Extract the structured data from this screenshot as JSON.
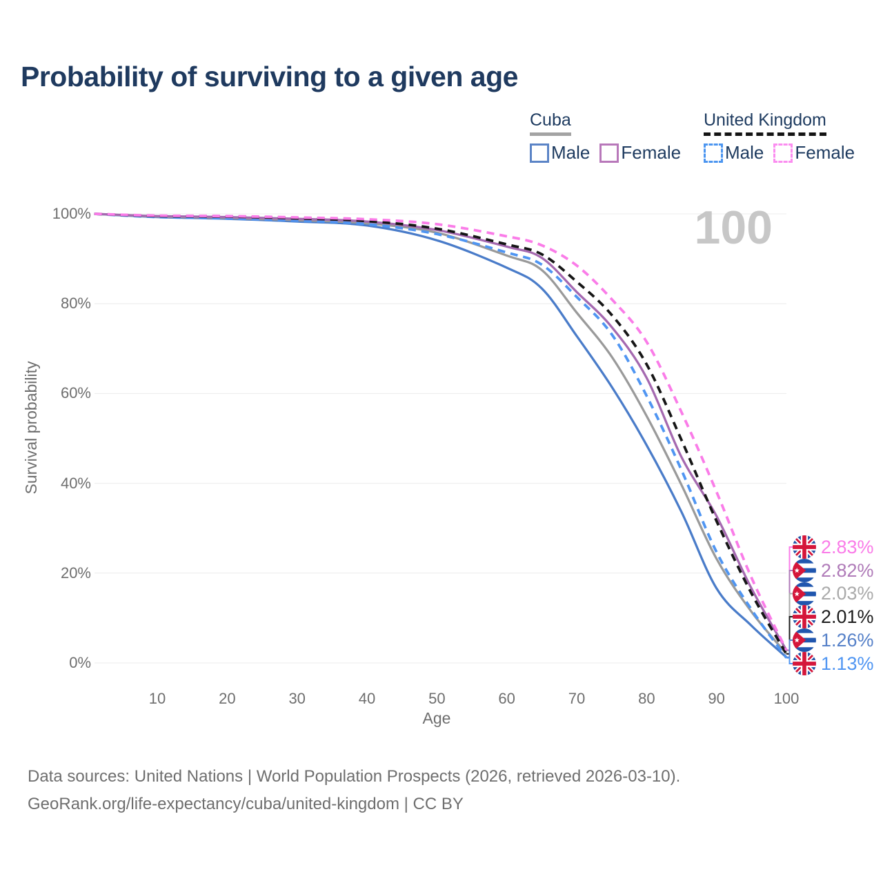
{
  "title": "Probability of surviving to a given age",
  "legend": {
    "groups": [
      {
        "country": "Cuba",
        "line_style": "solid",
        "underline_color": "#a3a3a3",
        "items": [
          {
            "label": "Male",
            "color": "#5b84c6",
            "dash": false
          },
          {
            "label": "Female",
            "color": "#b878ba",
            "dash": false
          }
        ]
      },
      {
        "country": "United Kingdom",
        "line_style": "dashed",
        "underline_color": "#141414",
        "items": [
          {
            "label": "Male",
            "color": "#4b95f0",
            "dash": true
          },
          {
            "label": "Female",
            "color": "#fb8df0",
            "dash": true
          }
        ]
      }
    ]
  },
  "axes": {
    "y_title": "Survival probability",
    "x_title": "Age",
    "y_ticks": [
      {
        "label": "0%",
        "value": 0
      },
      {
        "label": "20%",
        "value": 20
      },
      {
        "label": "40%",
        "value": 40
      },
      {
        "label": "60%",
        "value": 60
      },
      {
        "label": "80%",
        "value": 80
      },
      {
        "label": "100%",
        "value": 100
      }
    ],
    "x_ticks": [
      10,
      20,
      30,
      40,
      50,
      60,
      70,
      80,
      90,
      100
    ]
  },
  "chart": {
    "watermark": "100",
    "grid_color": "#ececec"
  },
  "chart_data": {
    "type": "line",
    "title": "Probability of surviving to a given age",
    "xlabel": "Age",
    "ylabel": "Survival probability",
    "x_range": [
      0,
      100
    ],
    "y_range_percent": [
      0,
      100
    ],
    "grid": true,
    "legend_position": "top-right",
    "ages": [
      0,
      10,
      20,
      30,
      40,
      50,
      60,
      65,
      70,
      75,
      80,
      85,
      90,
      95,
      100
    ],
    "series": [
      {
        "id": "cuba-male",
        "name": "Cuba Male",
        "color": "#4a7cc9",
        "style": "solid",
        "values": [
          100,
          99.3,
          98.9,
          98.3,
          97.4,
          94.1,
          88.0,
          83.4,
          72.8,
          61.5,
          48.5,
          33.6,
          16.6,
          8.3,
          1.26
        ]
      },
      {
        "id": "cuba-total",
        "name": "Cuba Total",
        "color": "#9a9a9a",
        "style": "solid",
        "values": [
          100,
          99.4,
          99.1,
          98.6,
          97.9,
          95.8,
          90.7,
          87.5,
          78.0,
          68.2,
          55.0,
          39.6,
          23.2,
          11.4,
          2.03
        ]
      },
      {
        "id": "uk-male",
        "name": "United Kingdom Male",
        "color": "#4f95f2",
        "style": "dashed",
        "values": [
          100,
          99.3,
          99.0,
          98.5,
          97.7,
          95.5,
          91.4,
          88.7,
          81.5,
          73.2,
          59.5,
          42.9,
          24.7,
          11.9,
          1.13
        ]
      },
      {
        "id": "cuba-female",
        "name": "Cuba Female",
        "color": "#a569b0",
        "style": "solid",
        "values": [
          100,
          99.5,
          99.3,
          98.9,
          98.3,
          96.4,
          92.7,
          90.2,
          82.6,
          74.8,
          63.5,
          45.8,
          32.7,
          16.6,
          2.82
        ]
      },
      {
        "id": "uk-total",
        "name": "United Kingdom Total",
        "color": "#161616",
        "style": "dashed",
        "values": [
          100,
          99.5,
          99.4,
          99.0,
          98.4,
          96.7,
          93.2,
          91.0,
          84.9,
          77.5,
          66.5,
          49.6,
          31.6,
          15.5,
          2.01
        ]
      },
      {
        "id": "uk-female",
        "name": "United Kingdom Female",
        "color": "#fa7ce8",
        "style": "dashed",
        "values": [
          100,
          99.6,
          99.5,
          99.2,
          98.8,
          97.7,
          95.0,
          93.0,
          88.5,
          81.0,
          71.5,
          55.8,
          38.1,
          19.0,
          2.83
        ]
      }
    ]
  },
  "end_labels": [
    {
      "flag": "uk",
      "series": "United Kingdom Female",
      "value": "2.83%",
      "color": "#fa7ce8",
      "end_percent": 2.83
    },
    {
      "flag": "cuba",
      "series": "Cuba Female",
      "value": "2.82%",
      "color": "#af7ab8",
      "end_percent": 2.82
    },
    {
      "flag": "cuba",
      "series": "Cuba Total",
      "value": "2.03%",
      "color": "#aaaaaa",
      "end_percent": 2.03
    },
    {
      "flag": "uk",
      "series": "United Kingdom Total",
      "value": "2.01%",
      "color": "#1d1d1d",
      "end_percent": 2.01
    },
    {
      "flag": "cuba",
      "series": "Cuba Male",
      "value": "1.26%",
      "color": "#5580c8",
      "end_percent": 1.26
    },
    {
      "flag": "uk",
      "series": "United Kingdom Male",
      "value": "1.13%",
      "color": "#4f95f2",
      "end_percent": 1.13
    }
  ],
  "footer": {
    "line1": "Data sources: United Nations | World Population Prospects (2026, retrieved 2026-03-10).",
    "line2": "GeoRank.org/life-expectancy/cuba/united-kingdom | CC BY"
  }
}
